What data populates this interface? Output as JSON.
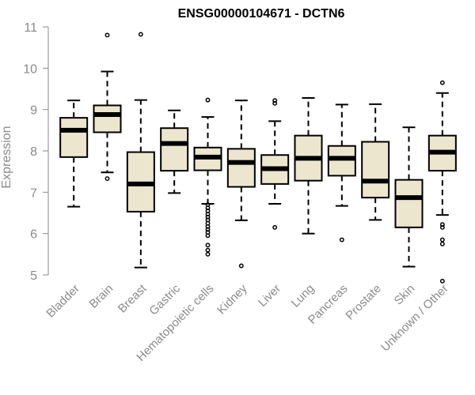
{
  "chart_data": {
    "type": "boxplot",
    "title": "ENSG00000104671 - DCTN6",
    "xlabel": "",
    "ylabel": "Expression",
    "ylim": [
      4.8,
      11.0
    ],
    "yticks": [
      5,
      6,
      7,
      8,
      9,
      10,
      11
    ],
    "box_color": "#ede6cf",
    "categories": [
      "Bladder",
      "Brain",
      "Breast",
      "Gastric",
      "Hematopoietic cells",
      "Kidney",
      "Liver",
      "Lung",
      "Pancreas",
      "Prostate",
      "Skin",
      "Unknown / Other"
    ],
    "boxes": [
      {
        "whisker_low": 6.65,
        "q1": 7.85,
        "median": 8.5,
        "q3": 8.8,
        "whisker_high": 9.22,
        "outliers": []
      },
      {
        "whisker_low": 7.48,
        "q1": 8.45,
        "median": 8.88,
        "q3": 9.1,
        "whisker_high": 9.92,
        "outliers": [
          7.33,
          10.8
        ]
      },
      {
        "whisker_low": 5.18,
        "q1": 6.53,
        "median": 7.2,
        "q3": 7.97,
        "whisker_high": 9.23,
        "outliers": [
          10.82
        ]
      },
      {
        "whisker_low": 6.98,
        "q1": 7.52,
        "median": 8.18,
        "q3": 8.55,
        "whisker_high": 8.98,
        "outliers": []
      },
      {
        "whisker_low": 6.72,
        "q1": 7.53,
        "median": 7.85,
        "q3": 8.08,
        "whisker_high": 8.82,
        "outliers": [
          9.23,
          6.7,
          6.62,
          6.55,
          6.47,
          6.4,
          6.33,
          6.25,
          6.17,
          6.1,
          6.03,
          5.95,
          5.72,
          5.6,
          5.5
        ]
      },
      {
        "whisker_low": 6.32,
        "q1": 7.13,
        "median": 7.72,
        "q3": 8.05,
        "whisker_high": 9.22,
        "outliers": [
          5.22
        ]
      },
      {
        "whisker_low": 6.72,
        "q1": 7.2,
        "median": 7.57,
        "q3": 7.9,
        "whisker_high": 8.72,
        "outliers": [
          9.15,
          9.22,
          6.15
        ]
      },
      {
        "whisker_low": 6.0,
        "q1": 7.28,
        "median": 7.82,
        "q3": 8.37,
        "whisker_high": 9.28,
        "outliers": []
      },
      {
        "whisker_low": 6.67,
        "q1": 7.4,
        "median": 7.82,
        "q3": 8.12,
        "whisker_high": 9.12,
        "outliers": [
          5.85
        ]
      },
      {
        "whisker_low": 6.33,
        "q1": 6.87,
        "median": 7.27,
        "q3": 8.22,
        "whisker_high": 9.13,
        "outliers": []
      },
      {
        "whisker_low": 5.2,
        "q1": 6.15,
        "median": 6.87,
        "q3": 7.3,
        "whisker_high": 8.57,
        "outliers": []
      },
      {
        "whisker_low": 6.45,
        "q1": 7.52,
        "median": 7.97,
        "q3": 8.37,
        "whisker_high": 9.4,
        "outliers": [
          9.65,
          6.22,
          6.15,
          5.85,
          5.75,
          4.85
        ]
      }
    ]
  }
}
